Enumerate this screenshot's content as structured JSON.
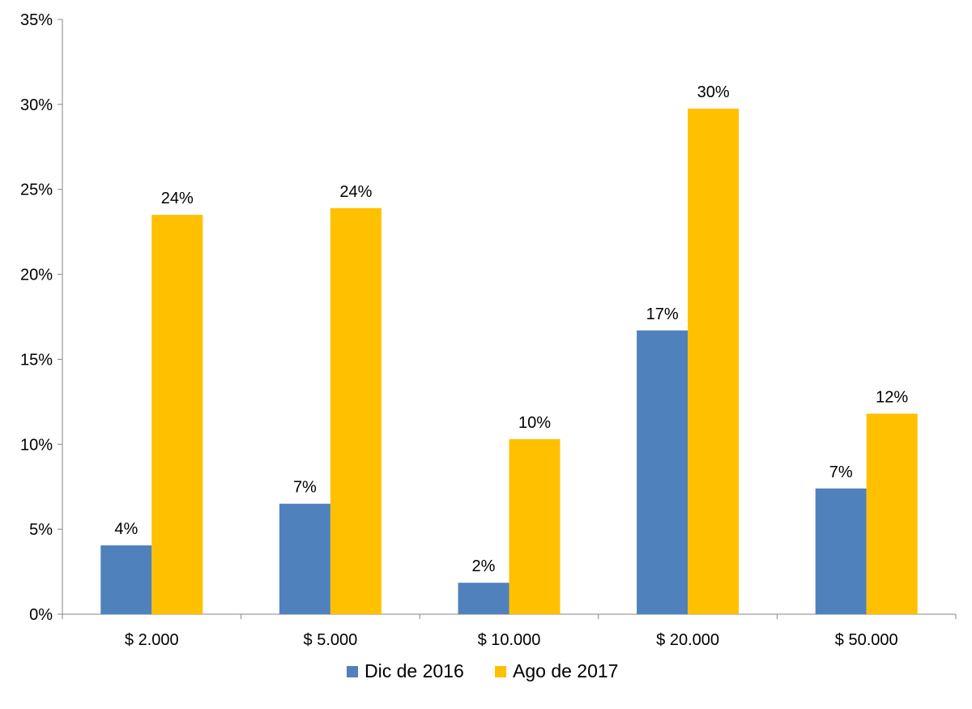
{
  "chart_data": {
    "type": "bar",
    "title": "",
    "xlabel": "",
    "ylabel": "",
    "categories": [
      "$ 2.000",
      "$ 5.000",
      "$ 10.000",
      "$ 20.000",
      "$ 50.000"
    ],
    "series": [
      {
        "name": "Dic de 2016",
        "color": "#4F81BD",
        "values": [
          4.05,
          6.5,
          1.85,
          16.7,
          7.4
        ],
        "labels": [
          "4%",
          "7%",
          "2%",
          "17%",
          "7%"
        ]
      },
      {
        "name": "Ago de 2017",
        "color": "#FFC000",
        "values": [
          23.5,
          23.9,
          10.3,
          29.75,
          11.8
        ],
        "labels": [
          "24%",
          "24%",
          "10%",
          "30%",
          "12%"
        ]
      }
    ],
    "ylim": [
      0,
      35
    ],
    "yticks": [
      0,
      5,
      10,
      15,
      20,
      25,
      30,
      35
    ],
    "ytick_labels": [
      "0%",
      "5%",
      "10%",
      "15%",
      "20%",
      "25%",
      "30%",
      "35%"
    ],
    "grid": false,
    "legend_position": "bottom"
  }
}
